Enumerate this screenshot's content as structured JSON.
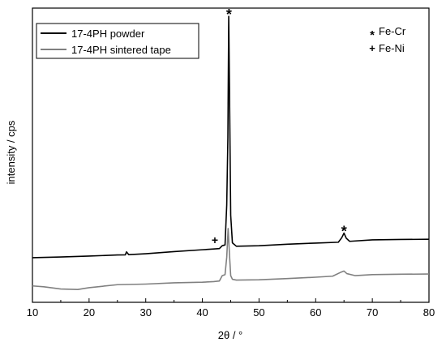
{
  "chart_data": {
    "type": "line",
    "title": "",
    "xlabel": "2θ  /  °",
    "ylabel": "intensity  /  cps",
    "xlim": [
      10,
      80
    ],
    "x_ticks": [
      10,
      20,
      30,
      40,
      50,
      60,
      70,
      80
    ],
    "y_ticks_shown": false,
    "grid": false,
    "legend": {
      "placement": "top-left",
      "entries": [
        "17-4PH powder",
        "17-4PH sintered tape"
      ]
    },
    "phase_legend": {
      "placement": "top-right",
      "entries": [
        {
          "symbol": "*",
          "label": "Fe-Cr"
        },
        {
          "symbol": "+",
          "label": "Fe-Ni"
        }
      ]
    },
    "annotations": [
      {
        "symbol": "*",
        "x": 44.7,
        "series": "17-4PH powder"
      },
      {
        "symbol": "+",
        "x": 43.5,
        "series": "17-4PH powder"
      },
      {
        "symbol": "*",
        "x": 65.0,
        "series": "17-4PH powder"
      }
    ],
    "colors": {
      "17-4PH powder": "#000000",
      "17-4PH sintered tape": "#808080"
    },
    "series": [
      {
        "name": "17-4PH powder",
        "x": [
          10,
          15,
          20,
          25,
          26.4,
          26.6,
          27,
          30,
          35,
          40,
          42,
          43,
          43.5,
          44,
          44.3,
          44.5,
          44.65,
          44.8,
          45,
          45.3,
          46,
          50,
          55,
          60,
          64,
          64.6,
          65,
          65.4,
          66,
          70,
          75,
          80
        ],
        "y": [
          4.35,
          4.42,
          4.51,
          4.62,
          4.63,
          4.92,
          4.65,
          4.74,
          4.95,
          5.13,
          5.2,
          5.24,
          5.52,
          5.6,
          9.5,
          16.0,
          27.9,
          20.0,
          8.5,
          5.8,
          5.47,
          5.52,
          5.67,
          5.78,
          5.86,
          6.3,
          6.75,
          6.25,
          5.95,
          6.09,
          6.13,
          6.15
        ]
      },
      {
        "name": "17-4PH sintered tape",
        "x": [
          10,
          12,
          15,
          18,
          20,
          25,
          30,
          35,
          40,
          42,
          43,
          43.5,
          44,
          44.3,
          44.55,
          44.8,
          45,
          45.3,
          46,
          50,
          55,
          60,
          63,
          64.5,
          65,
          65.5,
          67,
          70,
          75,
          80
        ],
        "y": [
          1.6,
          1.52,
          1.3,
          1.25,
          1.43,
          1.72,
          1.78,
          1.9,
          1.96,
          2.02,
          2.08,
          2.6,
          2.7,
          4.4,
          7.2,
          4.5,
          2.6,
          2.25,
          2.17,
          2.2,
          2.32,
          2.45,
          2.55,
          2.95,
          3.05,
          2.8,
          2.6,
          2.7,
          2.74,
          2.76
        ]
      }
    ]
  }
}
